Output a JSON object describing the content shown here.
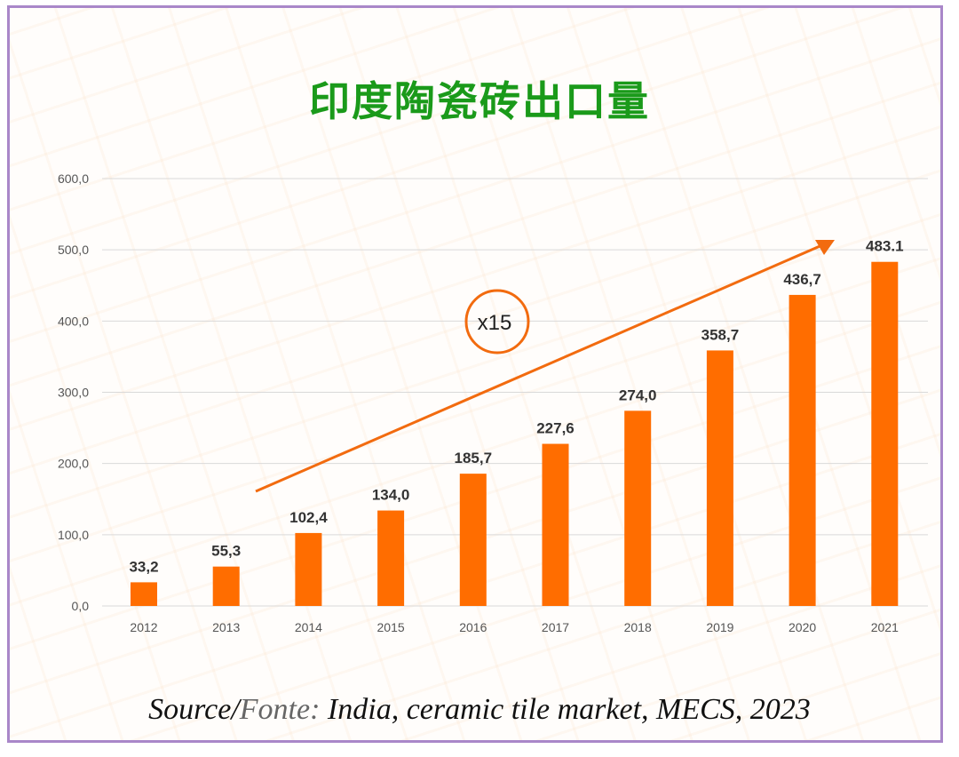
{
  "chart_data": {
    "type": "bar",
    "title": "印度陶瓷砖出口量",
    "categories": [
      "2012",
      "2013",
      "2014",
      "2015",
      "2016",
      "2017",
      "2018",
      "2019",
      "2020",
      "2021"
    ],
    "values": [
      33.2,
      55.3,
      102.4,
      134.0,
      185.7,
      227.6,
      274.0,
      358.7,
      436.7,
      483.1
    ],
    "data_labels": [
      "33,2",
      "55,3",
      "102,4",
      "134,0",
      "185,7",
      "227,6",
      "274,0",
      "358,7",
      "436,7",
      "483.1"
    ],
    "yticks": [
      "0,0",
      "100,0",
      "200,0",
      "300,0",
      "400,0",
      "500,0",
      "600,0"
    ],
    "ylim": [
      0,
      600
    ],
    "grid": true,
    "bar_color": "#ff6d00",
    "annotation": "x15",
    "annotation_color": "#f26b0f"
  },
  "source": {
    "prefix": "Source/",
    "fonte": "Fonte:",
    "text": " India, ceramic tile market, MECS, 2023"
  },
  "colors": {
    "title": "#1a9a1a",
    "border": "#a987c9"
  }
}
